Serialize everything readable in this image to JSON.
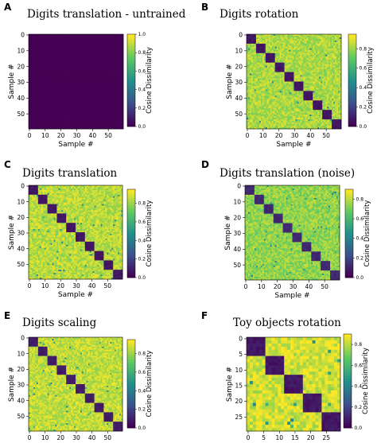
{
  "colors": {
    "colormap": [
      "#440154",
      "#3b528b",
      "#21918c",
      "#5ec962",
      "#fde725"
    ],
    "background": "#ffffff"
  },
  "chart_data": [
    {
      "type": "heatmap",
      "panel_label": "A",
      "title": "Digits translation - untrained",
      "xlabel": "Sample #",
      "ylabel": "Sample #",
      "colorbar_label": "Cosine Dissimilarity",
      "colorbar_ticks": [
        "0.0",
        "0.2",
        "0.4",
        "0.6",
        "0.8",
        "1.0"
      ],
      "colorbar_range": [
        0,
        1.0
      ],
      "x_ticks": [
        "0",
        "10",
        "20",
        "30",
        "40",
        "50"
      ],
      "y_ticks": [
        "0",
        "10",
        "20",
        "30",
        "40",
        "50"
      ],
      "n": 60,
      "block_size": 6,
      "pattern": "all-zero",
      "within_block": 0.0,
      "between_block": 0.0
    },
    {
      "type": "heatmap",
      "panel_label": "B",
      "title": "Digits rotation",
      "xlabel": "Sample #",
      "ylabel": "Sample #",
      "colorbar_label": "Cosine Dissimilarity",
      "colorbar_ticks": [
        "0.0",
        "0.2",
        "0.4",
        "0.6",
        "0.8"
      ],
      "colorbar_range": [
        0,
        0.95
      ],
      "x_ticks": [
        "0",
        "10",
        "20",
        "30",
        "40",
        "50"
      ],
      "y_ticks": [
        "0",
        "10",
        "20",
        "30",
        "40",
        "50"
      ],
      "n": 60,
      "block_size": 6,
      "pattern": "block-diagonal",
      "within_block": 0.03,
      "between_block": 0.83
    },
    {
      "type": "heatmap",
      "panel_label": "C",
      "title": "Digits translation",
      "xlabel": "Sample #",
      "ylabel": "Sample #",
      "colorbar_label": "Cosine Dissimilarity",
      "colorbar_ticks": [
        "0.0",
        "0.2",
        "0.4",
        "0.6",
        "0.8"
      ],
      "colorbar_range": [
        0,
        0.95
      ],
      "x_ticks": [
        "0",
        "10",
        "20",
        "30",
        "40",
        "50"
      ],
      "y_ticks": [
        "0",
        "10",
        "20",
        "30",
        "40",
        "50"
      ],
      "n": 60,
      "block_size": 6,
      "pattern": "block-diagonal",
      "within_block": 0.03,
      "between_block": 0.85
    },
    {
      "type": "heatmap",
      "panel_label": "D",
      "title": "Digits translation (noise)",
      "xlabel": "Sample #",
      "ylabel": "Sample #",
      "colorbar_label": "Cosine Dissimilarity",
      "colorbar_ticks": [
        "0.0",
        "0.2",
        "0.4",
        "0.6",
        "0.8"
      ],
      "colorbar_range": [
        0,
        0.9
      ],
      "x_ticks": [
        "0",
        "10",
        "20",
        "30",
        "40",
        "50"
      ],
      "y_ticks": [
        "0",
        "10",
        "20",
        "30",
        "40",
        "50"
      ],
      "n": 60,
      "block_size": 6,
      "pattern": "block-diagonal",
      "within_block": 0.08,
      "between_block": 0.75
    },
    {
      "type": "heatmap",
      "panel_label": "E",
      "title": "Digits scaling",
      "xlabel": "Sample #",
      "ylabel": "Sample #",
      "colorbar_label": "Cosine Dissimilarity",
      "colorbar_ticks": [
        "0.0",
        "0.2",
        "0.4",
        "0.6",
        "0.8"
      ],
      "colorbar_range": [
        0,
        0.95
      ],
      "x_ticks": [
        "0",
        "10",
        "20",
        "30",
        "40",
        "50"
      ],
      "y_ticks": [
        "0",
        "10",
        "20",
        "30",
        "40",
        "50"
      ],
      "n": 60,
      "block_size": 6,
      "pattern": "block-diagonal",
      "within_block": 0.05,
      "between_block": 0.86
    },
    {
      "type": "heatmap",
      "panel_label": "F",
      "title": "Toy objects rotation",
      "xlabel": "Sample #",
      "ylabel": "Sample #",
      "colorbar_label": "Cosine Dissimilarity",
      "colorbar_ticks": [
        "0.0",
        "0.2",
        "0.4",
        "0.6",
        "0.8"
      ],
      "colorbar_range": [
        0,
        0.9
      ],
      "x_ticks": [
        "0",
        "5",
        "10",
        "15",
        "20",
        "25"
      ],
      "y_ticks": [
        "0",
        "5",
        "10",
        "15",
        "20",
        "25"
      ],
      "n": 30,
      "block_size": 6,
      "pattern": "block-diagonal",
      "within_block": 0.03,
      "between_block": 0.84
    }
  ]
}
